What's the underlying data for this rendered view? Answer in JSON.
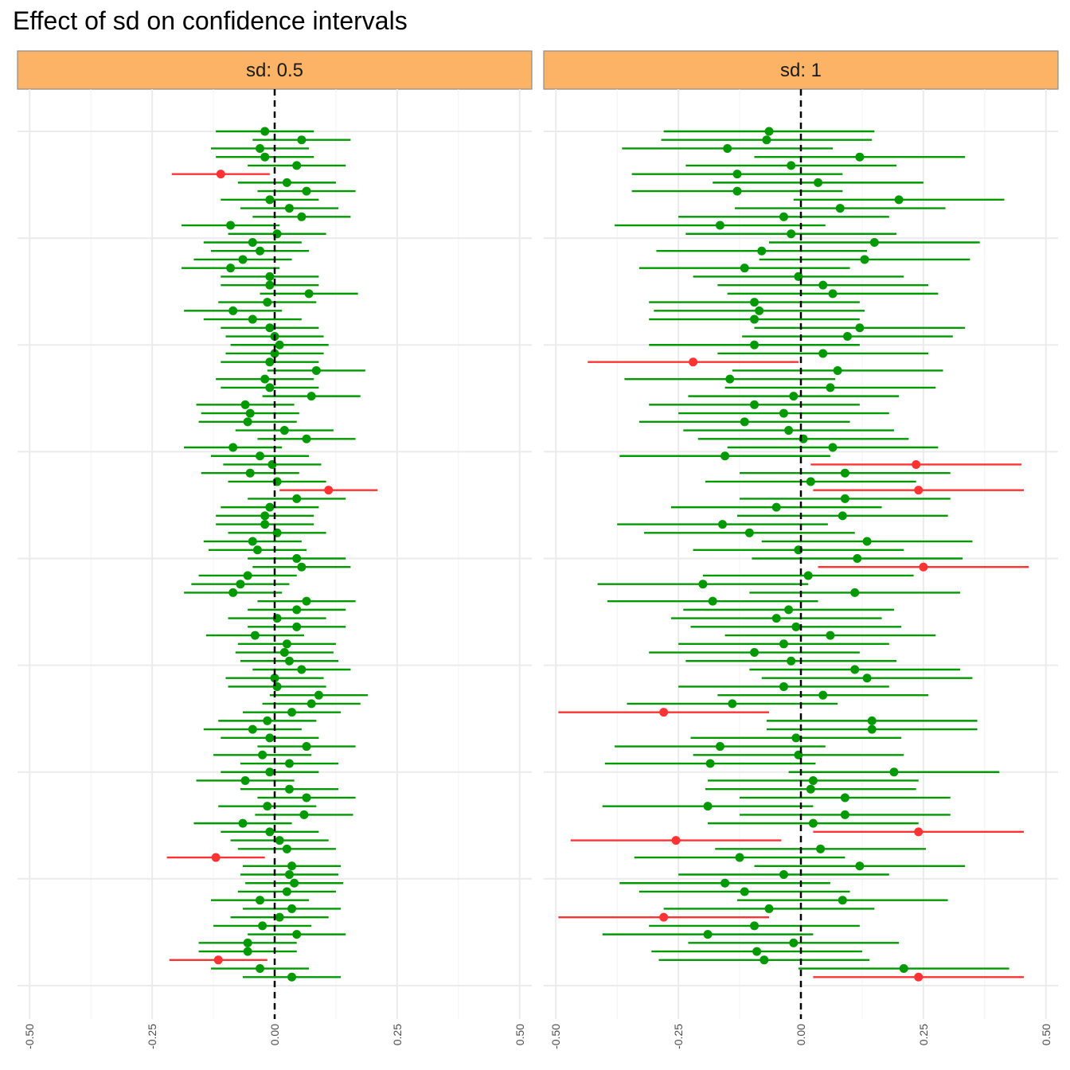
{
  "chart_data": {
    "type": "scatter",
    "title": "Effect of sd on confidence intervals",
    "xlabel": "",
    "ylabel": "",
    "xlim": [
      -0.5,
      0.5
    ],
    "xticks": [
      -0.5,
      -0.25,
      0,
      0.25,
      0.5
    ],
    "xtick_labels": [
      "-0.50",
      "-0.25",
      "0.00",
      "0.25",
      "0.50"
    ],
    "reference_line": 0,
    "grid": true,
    "legend": "none",
    "colors": {
      "covers_zero": "#009900",
      "misses_zero": "#ff3333",
      "strip_fill": "#fdb366",
      "reference_line": "#000000"
    },
    "panels": [
      {
        "strip": "sd: 0.5",
        "means": [
          -0.02,
          0.055,
          -0.03,
          -0.02,
          0.045,
          -0.11,
          0.025,
          0.065,
          -0.01,
          0.03,
          0.055,
          -0.09,
          0.005,
          -0.045,
          -0.03,
          -0.065,
          -0.09,
          -0.01,
          -0.01,
          0.07,
          -0.015,
          -0.085,
          -0.045,
          -0.01,
          0.0,
          0.01,
          0.0,
          -0.01,
          0.085,
          -0.02,
          -0.01,
          0.075,
          -0.06,
          -0.05,
          -0.055,
          0.02,
          0.065,
          -0.085,
          -0.03,
          -0.005,
          -0.05,
          0.005,
          0.11,
          0.045,
          -0.01,
          -0.02,
          -0.02,
          0.005,
          -0.045,
          -0.035,
          0.045,
          0.055,
          -0.055,
          -0.07,
          -0.085,
          0.065,
          0.045,
          0.005,
          0.045,
          -0.04,
          0.025,
          0.02,
          0.03,
          0.055,
          0.0,
          0.005,
          0.09,
          0.075,
          0.035,
          -0.015,
          -0.045,
          -0.01,
          0.065,
          -0.025,
          0.03,
          -0.01,
          -0.06,
          0.03,
          0.065,
          -0.015,
          0.06,
          -0.065,
          -0.01,
          0.01,
          0.025,
          -0.12,
          0.035,
          0.03,
          0.04,
          0.025,
          -0.03,
          0.035,
          0.01,
          -0.025,
          0.045,
          -0.055,
          -0.055,
          -0.115,
          -0.03,
          0.035
        ],
        "half_width": 0.1
      },
      {
        "strip": "sd: 1",
        "means": [
          -0.065,
          -0.07,
          -0.15,
          0.12,
          -0.02,
          -0.13,
          0.035,
          -0.13,
          0.2,
          0.08,
          -0.035,
          -0.165,
          -0.02,
          0.15,
          -0.08,
          0.13,
          -0.115,
          -0.005,
          0.045,
          0.065,
          -0.095,
          -0.085,
          -0.095,
          0.12,
          0.095,
          -0.095,
          0.045,
          -0.22,
          0.075,
          -0.145,
          0.06,
          -0.015,
          -0.095,
          -0.035,
          -0.115,
          -0.025,
          0.005,
          0.065,
          -0.155,
          0.235,
          0.09,
          0.02,
          0.24,
          0.09,
          -0.05,
          0.085,
          -0.16,
          -0.105,
          0.135,
          -0.005,
          0.115,
          0.25,
          0.015,
          -0.2,
          0.11,
          -0.18,
          -0.025,
          -0.05,
          -0.01,
          0.06,
          -0.035,
          -0.095,
          -0.02,
          0.11,
          0.135,
          -0.035,
          0.045,
          -0.14,
          -0.28,
          0.145,
          0.145,
          -0.01,
          -0.165,
          -0.005,
          -0.185,
          0.19,
          0.025,
          0.02,
          0.09,
          -0.19,
          0.09,
          0.025,
          0.24,
          -0.255,
          0.04,
          -0.125,
          0.12,
          -0.035,
          -0.155,
          -0.115,
          0.085,
          -0.065,
          -0.28,
          -0.095,
          -0.19,
          -0.015,
          -0.09,
          -0.075,
          0.21,
          0.24
        ],
        "half_width": 0.215
      }
    ]
  }
}
